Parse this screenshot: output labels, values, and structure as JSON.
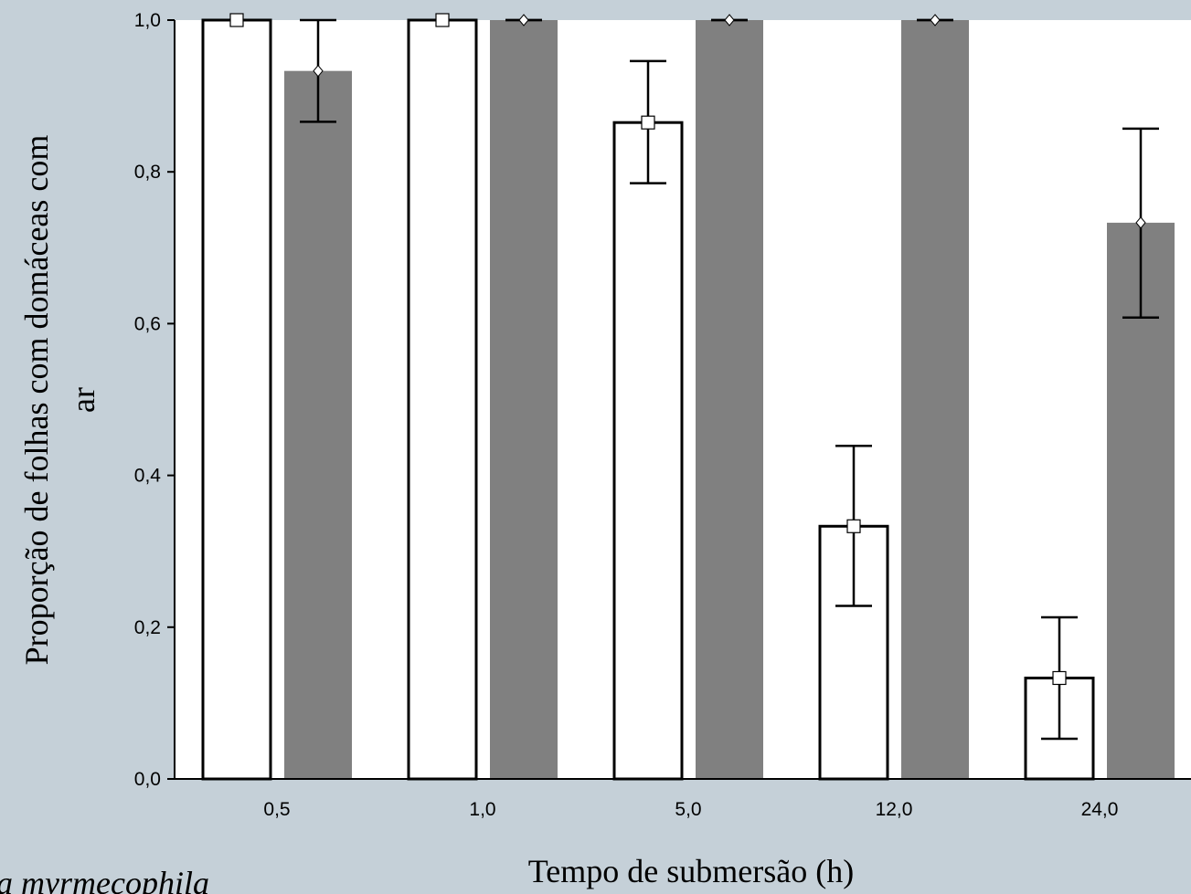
{
  "chart_data": {
    "type": "bar",
    "title": "",
    "xlabel": "Tempo de submersão (h)",
    "ylabel": "Proporção de folhas com domáceas com ar",
    "caption_fragment": "la myrmecophila",
    "categories": [
      "0,5",
      "1,0",
      "5,0",
      "12,0",
      "24,0"
    ],
    "ylim": [
      0,
      1
    ],
    "y_ticks": [
      "0,0",
      "0,2",
      "0,4",
      "0,6",
      "0,8",
      "1,0"
    ],
    "grid": false,
    "legend": "none",
    "series": [
      {
        "fill": "#ffffff",
        "marker": "square",
        "values": [
          1.0,
          1.0,
          0.865,
          0.333,
          0.133
        ],
        "error_upper": [
          1.0,
          1.0,
          0.946,
          0.439,
          0.213
        ],
        "error_lower": [
          1.0,
          1.0,
          0.785,
          0.228,
          0.053
        ]
      },
      {
        "fill": "#808080",
        "marker": "diamond",
        "values": [
          0.933,
          1.0,
          1.0,
          1.0,
          0.733
        ],
        "error_upper": [
          1.0,
          1.0,
          1.0,
          1.0,
          0.857
        ],
        "error_lower": [
          0.866,
          1.0,
          1.0,
          1.0,
          0.608
        ]
      }
    ],
    "colors": {
      "background": "#c5d0d8",
      "plot_area": "#ffffff",
      "axis": "#000000"
    }
  }
}
